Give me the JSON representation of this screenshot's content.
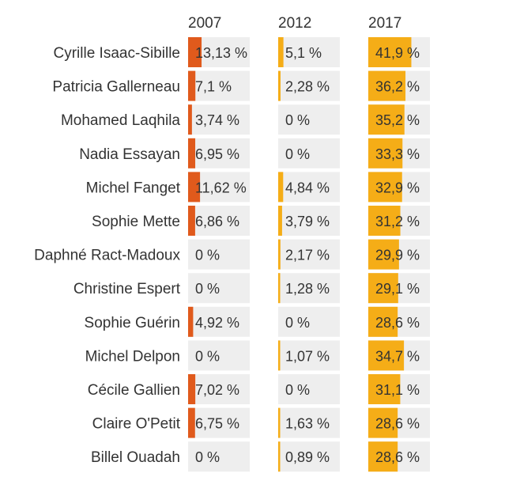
{
  "colors": {
    "track": "#eeeeee",
    "bar_2007": "#e05a1c",
    "bar_2012": "#f5ad17",
    "bar_2017": "#f5ad17",
    "text": "#333333"
  },
  "chart_data": {
    "type": "bar",
    "orientation": "horizontal",
    "xlim": [
      0,
      60
    ],
    "columns": [
      "2007",
      "2012",
      "2017"
    ],
    "categories": [
      "Cyrille Isaac-Sibille",
      "Patricia Gallerneau",
      "Mohamed Laqhila",
      "Nadia Essayan",
      "Michel Fanget",
      "Sophie Mette",
      "Daphné Ract-Madoux",
      "Christine Espert",
      "Sophie Guérin",
      "Michel Delpon",
      "Cécile Gallien",
      "Claire O'Petit",
      "Billel Ouadah"
    ],
    "series": [
      {
        "name": "2007",
        "values": [
          13.13,
          7.1,
          3.74,
          6.95,
          11.62,
          6.86,
          0,
          0,
          4.92,
          0,
          7.02,
          6.75,
          0
        ],
        "labels": [
          "13,13 %",
          "7,1 %",
          "3,74 %",
          "6,95 %",
          "11,62 %",
          "6,86 %",
          "0 %",
          "0 %",
          "4,92 %",
          "0 %",
          "7,02 %",
          "6,75 %",
          "0 %"
        ]
      },
      {
        "name": "2012",
        "values": [
          5.1,
          2.28,
          0,
          0,
          4.84,
          3.79,
          2.17,
          1.28,
          0,
          1.07,
          0,
          1.63,
          0.89
        ],
        "labels": [
          "5,1 %",
          "2,28 %",
          "0 %",
          "0 %",
          "4,84 %",
          "3,79 %",
          "2,17 %",
          "1,28 %",
          "0 %",
          "1,07 %",
          "0 %",
          "1,63 %",
          "0,89 %"
        ]
      },
      {
        "name": "2017",
        "values": [
          41.9,
          36.2,
          35.2,
          33.3,
          32.9,
          31.2,
          29.9,
          29.1,
          28.6,
          34.7,
          31.1,
          28.6,
          28.6
        ],
        "labels": [
          "41,9 %",
          "36,2 %",
          "35,2 %",
          "33,3 %",
          "32,9 %",
          "31,2 %",
          "29,9 %",
          "29,1 %",
          "28,6 %",
          "34,7 %",
          "31,1 %",
          "28,6 %",
          "28,6 %"
        ]
      }
    ]
  }
}
